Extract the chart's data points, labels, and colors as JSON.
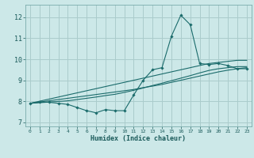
{
  "xlabel": "Humidex (Indice chaleur)",
  "bg_color": "#cce8e8",
  "grid_color": "#aacccc",
  "line_color": "#1a6b6b",
  "xlim": [
    -0.5,
    23.5
  ],
  "ylim": [
    6.8,
    12.6
  ],
  "yticks": [
    7,
    8,
    9,
    10,
    11,
    12
  ],
  "xticks": [
    0,
    1,
    2,
    3,
    4,
    5,
    6,
    7,
    8,
    9,
    10,
    11,
    12,
    13,
    14,
    15,
    16,
    17,
    18,
    19,
    20,
    21,
    22,
    23
  ],
  "x": [
    0,
    1,
    2,
    3,
    4,
    5,
    6,
    7,
    8,
    9,
    10,
    11,
    12,
    13,
    14,
    15,
    16,
    17,
    18,
    19,
    20,
    21,
    22,
    23
  ],
  "y_main": [
    7.9,
    7.95,
    7.95,
    7.9,
    7.85,
    7.7,
    7.55,
    7.45,
    7.6,
    7.55,
    7.55,
    8.3,
    9.0,
    9.5,
    9.6,
    11.1,
    12.1,
    11.65,
    9.8,
    9.75,
    9.8,
    9.7,
    9.55,
    9.55
  ],
  "y_reg1": [
    7.9,
    8.0,
    8.1,
    8.2,
    8.3,
    8.4,
    8.5,
    8.6,
    8.7,
    8.8,
    8.9,
    9.0,
    9.1,
    9.2,
    9.3,
    9.4,
    9.5,
    9.6,
    9.7,
    9.8,
    9.85,
    9.9,
    9.95,
    9.95
  ],
  "y_reg2": [
    7.9,
    7.96,
    8.02,
    8.08,
    8.14,
    8.2,
    8.26,
    8.32,
    8.38,
    8.44,
    8.5,
    8.56,
    8.65,
    8.72,
    8.8,
    8.9,
    9.0,
    9.1,
    9.2,
    9.3,
    9.4,
    9.48,
    9.55,
    9.6
  ],
  "y_reg3": [
    7.9,
    7.93,
    7.96,
    7.99,
    8.02,
    8.08,
    8.14,
    8.2,
    8.27,
    8.33,
    8.42,
    8.52,
    8.63,
    8.75,
    8.86,
    8.98,
    9.1,
    9.22,
    9.35,
    9.47,
    9.55,
    9.6,
    9.65,
    9.65
  ]
}
